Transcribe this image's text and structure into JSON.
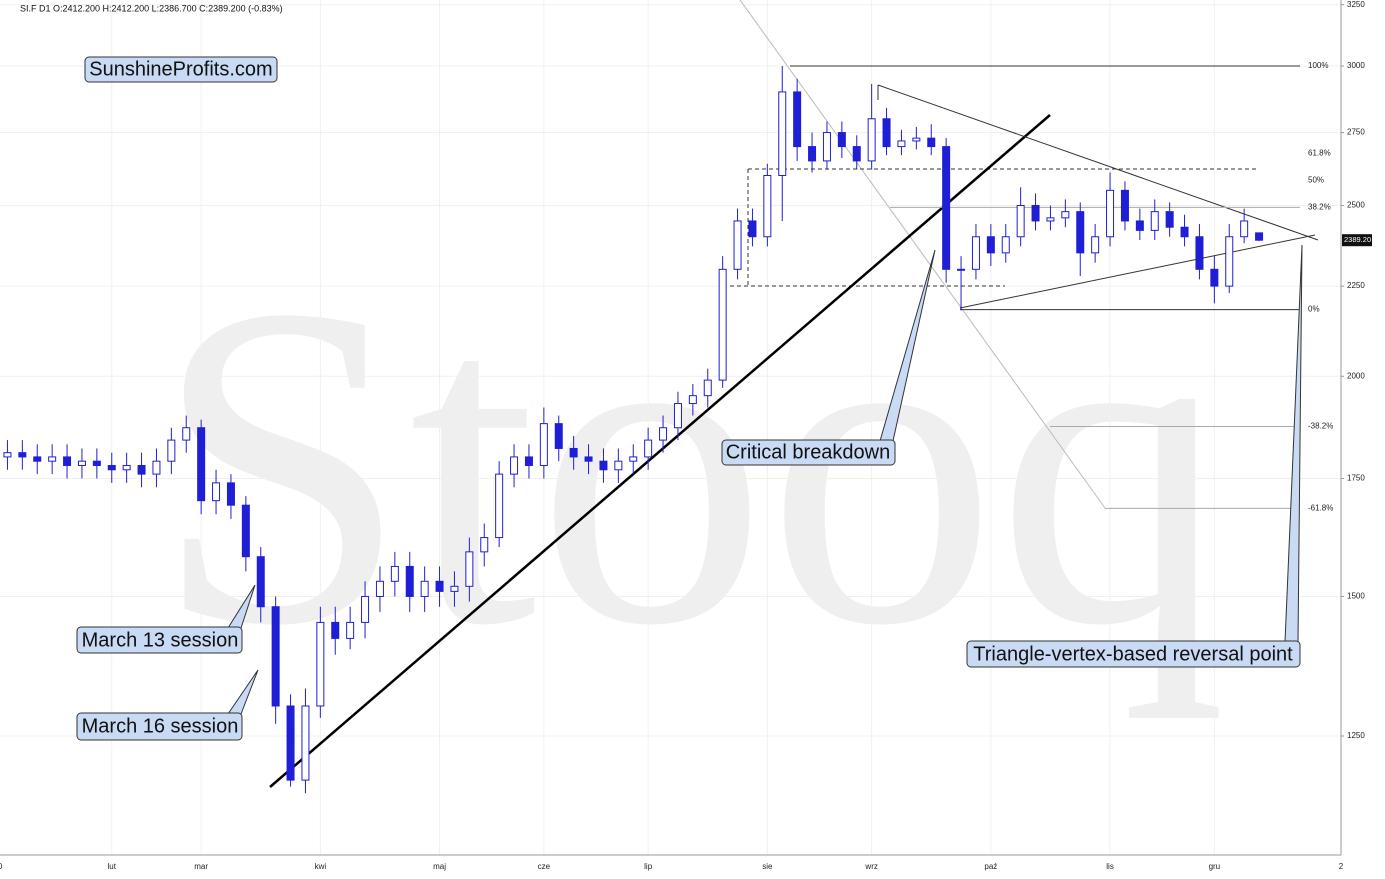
{
  "chart_data": {
    "type": "candlestick",
    "header": "SI.F  D1  O:2412.200  H:2412.200  L:2386.700  C:2389.200  (-0.83%)",
    "watermark": "Stooq",
    "last_price_label": "2389.20",
    "annotations": [
      "SunshineProfits.com",
      "Critical breakdown",
      "March 13 session",
      "March 16 session",
      "Triangle-vertex-based reversal point"
    ],
    "color": "#1f1fd6",
    "log_scale": true,
    "grid": true,
    "ylim": [
      1070,
      3270
    ],
    "yticks": [
      1250,
      1500,
      1750,
      2000,
      2250,
      2500,
      2750,
      3000,
      3250
    ],
    "x_edge_labels": [
      "0",
      "2"
    ],
    "categories": [
      null,
      null,
      null,
      null,
      null,
      null,
      null,
      "lut",
      null,
      null,
      null,
      null,
      null,
      "mar",
      null,
      null,
      null,
      null,
      null,
      null,
      null,
      "kwi",
      null,
      null,
      null,
      null,
      null,
      null,
      null,
      "maj",
      null,
      null,
      null,
      null,
      null,
      null,
      "cze",
      null,
      null,
      null,
      null,
      null,
      null,
      "lip",
      null,
      null,
      null,
      null,
      null,
      null,
      null,
      "sie",
      null,
      null,
      null,
      null,
      null,
      null,
      "wrz",
      null,
      null,
      null,
      null,
      null,
      null,
      null,
      "paź",
      null,
      null,
      null,
      null,
      null,
      null,
      null,
      "lis",
      null,
      null,
      null,
      null,
      null,
      null,
      "gru",
      null,
      null,
      null
    ],
    "open": [
      1800,
      1810,
      1800,
      1790,
      1800,
      1780,
      1790,
      1780,
      1770,
      1780,
      1760,
      1790,
      1840,
      1870,
      1700,
      1740,
      1690,
      1580,
      1480,
      1300,
      1180,
      1300,
      1450,
      1420,
      1450,
      1500,
      1530,
      1560,
      1500,
      1530,
      1510,
      1520,
      1590,
      1620,
      1760,
      1800,
      1780,
      1880,
      1820,
      1800,
      1790,
      1770,
      1790,
      1800,
      1840,
      1870,
      1930,
      1950,
      1990,
      2300,
      2450,
      2400,
      2600,
      2900,
      2700,
      2650,
      2750,
      2700,
      2650,
      2800,
      2700,
      2720,
      2730,
      2700,
      2300,
      2300,
      2400,
      2350,
      2400,
      2500,
      2450,
      2460,
      2480,
      2350,
      2400,
      2550,
      2450,
      2420,
      2480,
      2430,
      2400,
      2300,
      2250,
      2400,
      2412.2
    ],
    "high": [
      1840,
      1840,
      1830,
      1830,
      1830,
      1820,
      1820,
      1810,
      1810,
      1810,
      1820,
      1870,
      1900,
      1890,
      1770,
      1760,
      1710,
      1600,
      1500,
      1320,
      1330,
      1480,
      1480,
      1480,
      1530,
      1560,
      1590,
      1590,
      1560,
      1560,
      1550,
      1620,
      1650,
      1790,
      1830,
      1830,
      1920,
      1900,
      1850,
      1830,
      1820,
      1820,
      1830,
      1870,
      1900,
      1960,
      1980,
      2020,
      2340,
      2490,
      2490,
      2640,
      3000,
      2950,
      2750,
      2790,
      2790,
      2740,
      2930,
      2840,
      2760,
      2770,
      2780,
      2730,
      2340,
      2440,
      2440,
      2440,
      2560,
      2540,
      2500,
      2520,
      2510,
      2440,
      2610,
      2580,
      2490,
      2520,
      2510,
      2470,
      2440,
      2340,
      2440,
      2490,
      2412.2
    ],
    "low": [
      1770,
      1770,
      1760,
      1760,
      1750,
      1750,
      1750,
      1740,
      1740,
      1730,
      1730,
      1760,
      1810,
      1670,
      1670,
      1660,
      1550,
      1450,
      1270,
      1170,
      1160,
      1280,
      1390,
      1400,
      1420,
      1470,
      1500,
      1470,
      1470,
      1480,
      1480,
      1490,
      1560,
      1600,
      1730,
      1750,
      1750,
      1790,
      1770,
      1760,
      1740,
      1740,
      1760,
      1770,
      1810,
      1840,
      1900,
      1920,
      1970,
      2270,
      2370,
      2370,
      2450,
      2650,
      2610,
      2620,
      2660,
      2620,
      2620,
      2670,
      2670,
      2690,
      2670,
      2260,
      2180,
      2270,
      2310,
      2320,
      2370,
      2420,
      2420,
      2430,
      2280,
      2320,
      2370,
      2420,
      2390,
      2390,
      2400,
      2370,
      2270,
      2200,
      2230,
      2380,
      2386.7
    ],
    "close": [
      1810,
      1800,
      1790,
      1800,
      1780,
      1790,
      1780,
      1770,
      1780,
      1760,
      1790,
      1840,
      1870,
      1700,
      1740,
      1690,
      1580,
      1480,
      1300,
      1180,
      1300,
      1450,
      1420,
      1450,
      1500,
      1530,
      1560,
      1500,
      1530,
      1510,
      1520,
      1590,
      1620,
      1760,
      1800,
      1780,
      1880,
      1820,
      1800,
      1790,
      1770,
      1790,
      1800,
      1840,
      1870,
      1930,
      1950,
      1990,
      2300,
      2450,
      2400,
      2600,
      2900,
      2700,
      2650,
      2750,
      2700,
      2650,
      2800,
      2700,
      2720,
      2730,
      2700,
      2300,
      2300,
      2400,
      2350,
      2400,
      2500,
      2450,
      2460,
      2480,
      2350,
      2400,
      2550,
      2450,
      2420,
      2480,
      2430,
      2400,
      2300,
      2250,
      2400,
      2450,
      2389.2
    ],
    "fib_levels": {
      "labels": [
        "100%",
        "61.8%",
        "50%",
        "38.2%",
        "0%",
        "-38.2%",
        "-61.8%"
      ],
      "prices": [
        3000,
        2677,
        2584,
        2494,
        2182,
        1873,
        1683
      ]
    }
  }
}
